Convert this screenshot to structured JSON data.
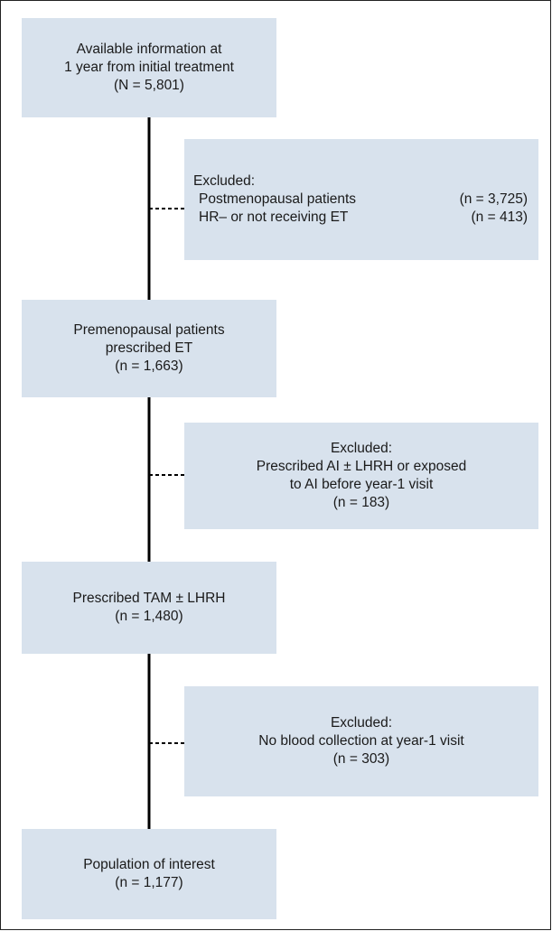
{
  "nodes": [
    {
      "lines": [
        "Available information at",
        "1 year from initial treatment",
        "(N = 5,801)"
      ]
    },
    {
      "title": "Excluded:",
      "rows": [
        {
          "label": "Postmenopausal patients",
          "count": "(n = 3,725)"
        },
        {
          "label": "HR– or not receiving ET",
          "count": "(n = 413)"
        }
      ]
    },
    {
      "lines": [
        "Premenopausal patients",
        "prescribed ET",
        "(n = 1,663)"
      ]
    },
    {
      "lines": [
        "Excluded:",
        "Prescribed AI ± LHRH or exposed",
        "to AI before year-1 visit",
        "(n = 183)"
      ]
    },
    {
      "lines": [
        "Prescribed TAM ± LHRH",
        "(n = 1,480)"
      ]
    },
    {
      "lines": [
        "Excluded:",
        "No blood collection at year-1 visit",
        "(n = 303)"
      ]
    },
    {
      "lines": [
        "Population of interest",
        "(n = 1,177)"
      ]
    }
  ]
}
